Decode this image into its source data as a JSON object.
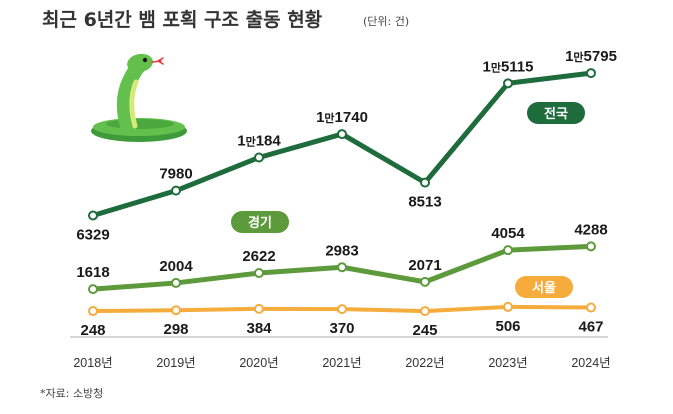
{
  "header": {
    "title": "최근 6년간 뱀 포획 구조 출동 현황",
    "unit": "(단위: 건)"
  },
  "source": "*자료: 소방청",
  "colors": {
    "nationwide": "#1e6b3c",
    "gyeonggi": "#5d9a3c",
    "seoul": "#f5ac3c",
    "axis": "#bdbdbd",
    "snake_body": "#64c04c",
    "snake_belly": "#d6ea7c",
    "snake_tongue": "#e8383c"
  },
  "chart_data": {
    "type": "line",
    "categories": [
      "2018년",
      "2019년",
      "2020년",
      "2021년",
      "2022년",
      "2023년",
      "2024년"
    ],
    "series": [
      {
        "name": "전국",
        "values": [
          6329,
          7980,
          10184,
          11740,
          8513,
          15115,
          15795
        ],
        "labels": [
          "6329",
          "7980",
          "1만184",
          "1만1740",
          "8513",
          "1만5115",
          "1만5795"
        ]
      },
      {
        "name": "경기",
        "values": [
          1618,
          2004,
          2622,
          2983,
          2071,
          4054,
          4288
        ],
        "labels": [
          "1618",
          "2004",
          "2622",
          "2983",
          "2071",
          "4054",
          "4288"
        ]
      },
      {
        "name": "서울",
        "values": [
          248,
          298,
          384,
          370,
          245,
          506,
          467
        ],
        "labels": [
          "248",
          "298",
          "384",
          "370",
          "245",
          "506",
          "467"
        ]
      }
    ]
  },
  "illustration": {
    "icon": "snake-icon"
  }
}
